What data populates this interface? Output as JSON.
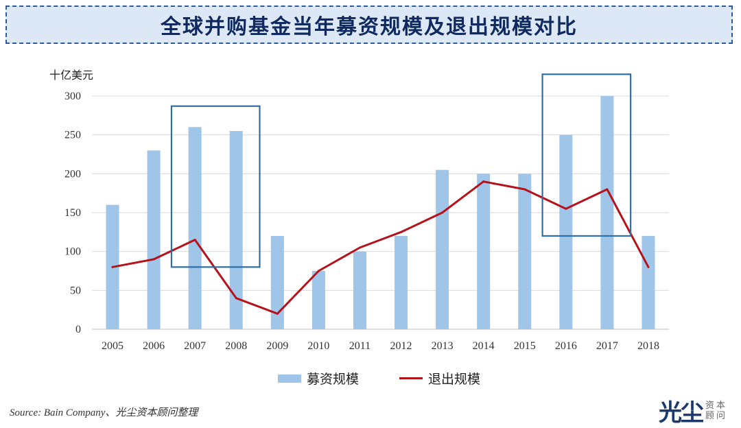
{
  "title": "全球并购基金当年募资规模及退出规模对比",
  "unit_label": "十亿美元",
  "source": "Source: Bain Company、光尘资本顾问整理",
  "logo": {
    "main": "光尘",
    "sub_top": "资本",
    "sub_bottom": "顾问"
  },
  "legend": {
    "bar_label": "募资规模",
    "line_label": "退出规模"
  },
  "colors": {
    "bar": "#9fc5e8",
    "line": "#b5121b",
    "highlight_box": "#2e6ea6",
    "grid": "#d9d9d9"
  },
  "chart_data": {
    "type": "bar",
    "categories": [
      "2005",
      "2006",
      "2007",
      "2008",
      "2009",
      "2010",
      "2011",
      "2012",
      "2013",
      "2014",
      "2015",
      "2016",
      "2017",
      "2018"
    ],
    "series": [
      {
        "name": "募资规模",
        "type": "bar",
        "values": [
          160,
          230,
          260,
          255,
          120,
          75,
          100,
          120,
          205,
          200,
          200,
          250,
          300,
          120
        ]
      },
      {
        "name": "退出规模",
        "type": "line",
        "values": [
          80,
          90,
          115,
          40,
          20,
          75,
          105,
          125,
          150,
          190,
          180,
          155,
          180,
          80
        ]
      }
    ],
    "ylim": [
      0,
      300
    ],
    "yticks": [
      0,
      50,
      100,
      150,
      200,
      250,
      300
    ],
    "ylabel": "十亿美元",
    "grid": true,
    "legend_position": "bottom",
    "highlight_boxes": [
      {
        "from": "2007",
        "to": "2008",
        "y_low": 80,
        "y_high": 287
      },
      {
        "from": "2016",
        "to": "2017",
        "y_low": 120,
        "y_high": 328
      }
    ]
  }
}
